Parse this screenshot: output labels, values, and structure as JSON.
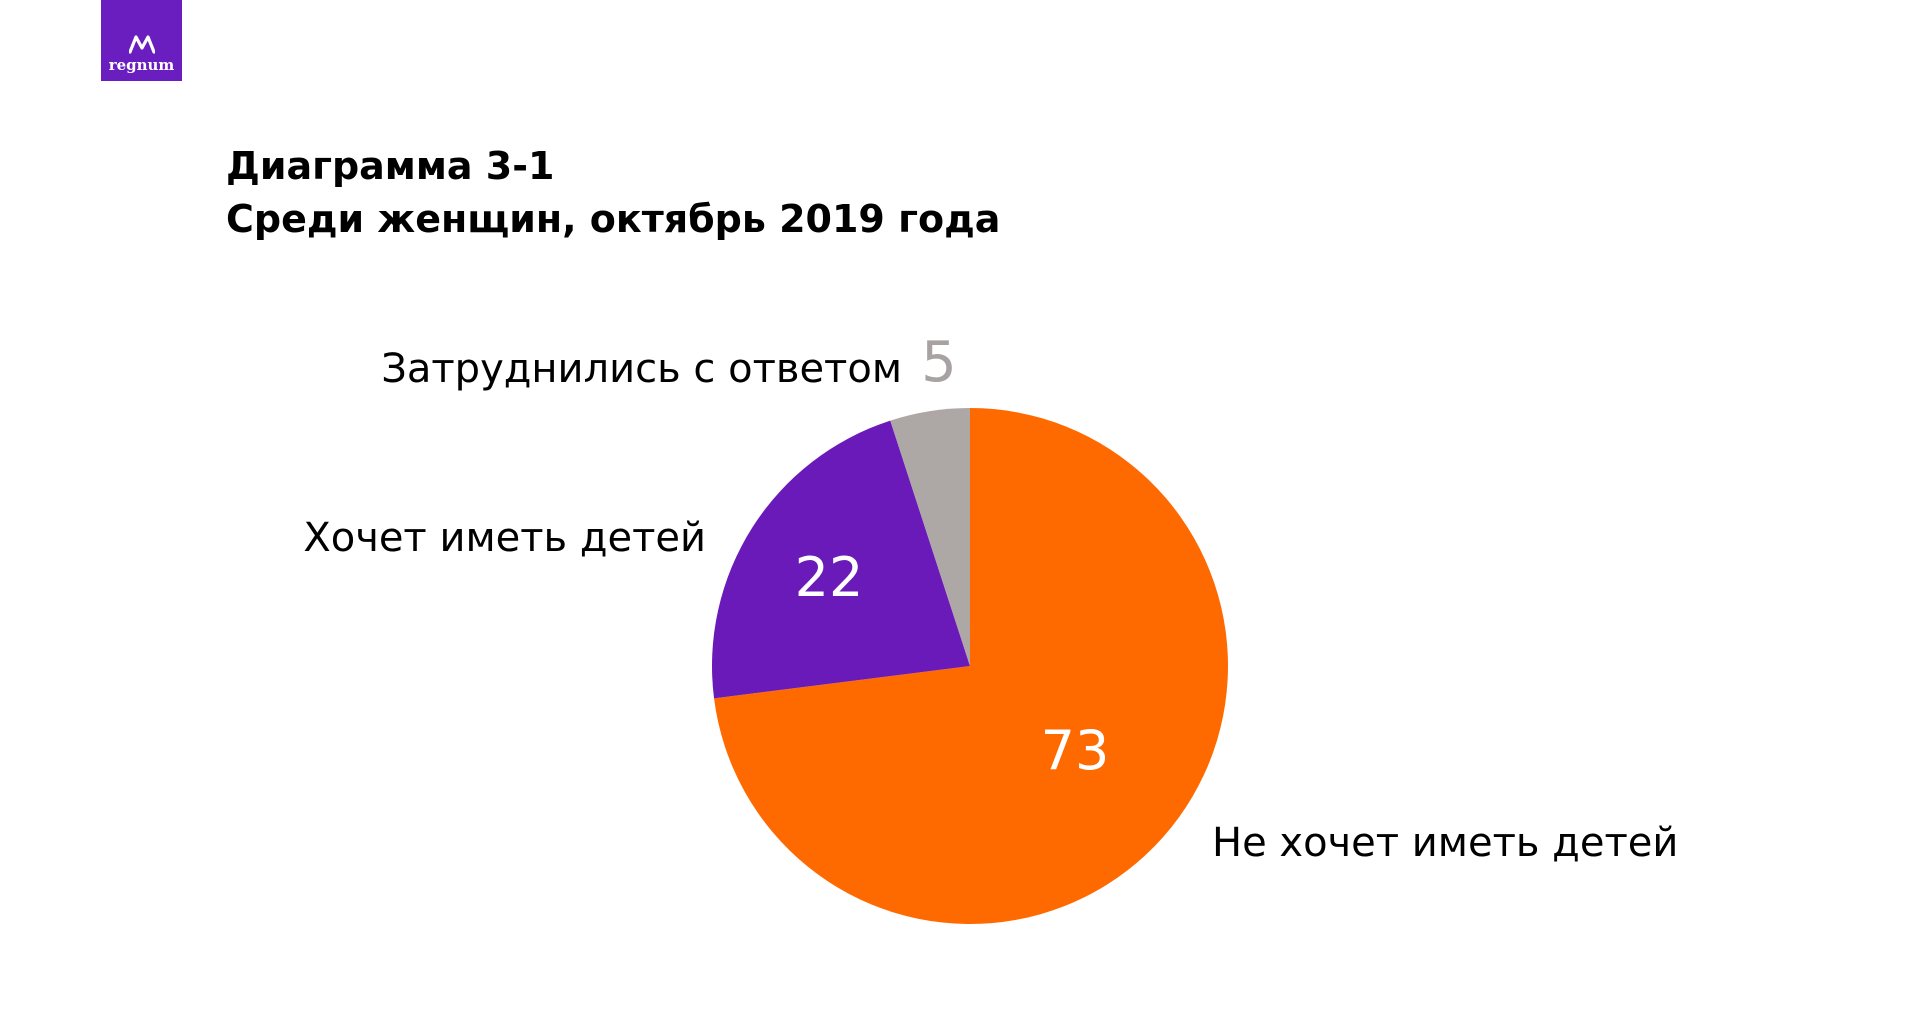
{
  "logo": {
    "text": "regnum",
    "color": "#6a1ebf"
  },
  "title": {
    "line1": "Диаграмма 3-1",
    "line2": "Среди женщин, октябрь 2019 года"
  },
  "chart_data": {
    "type": "pie",
    "start": "12 o'clock",
    "direction": "clockwise",
    "slices": [
      {
        "label": "Не хочет иметь детей",
        "value": 73,
        "color": "#ff6a00",
        "value_color": "#ffffff"
      },
      {
        "label": "Хочет иметь детей",
        "value": 22,
        "color": "#6a1ab8",
        "value_color": "#ffffff"
      },
      {
        "label": "Затруднились с ответом",
        "value": 5,
        "color": "#ada7a6",
        "value_color": "#a8a3a2"
      }
    ]
  }
}
